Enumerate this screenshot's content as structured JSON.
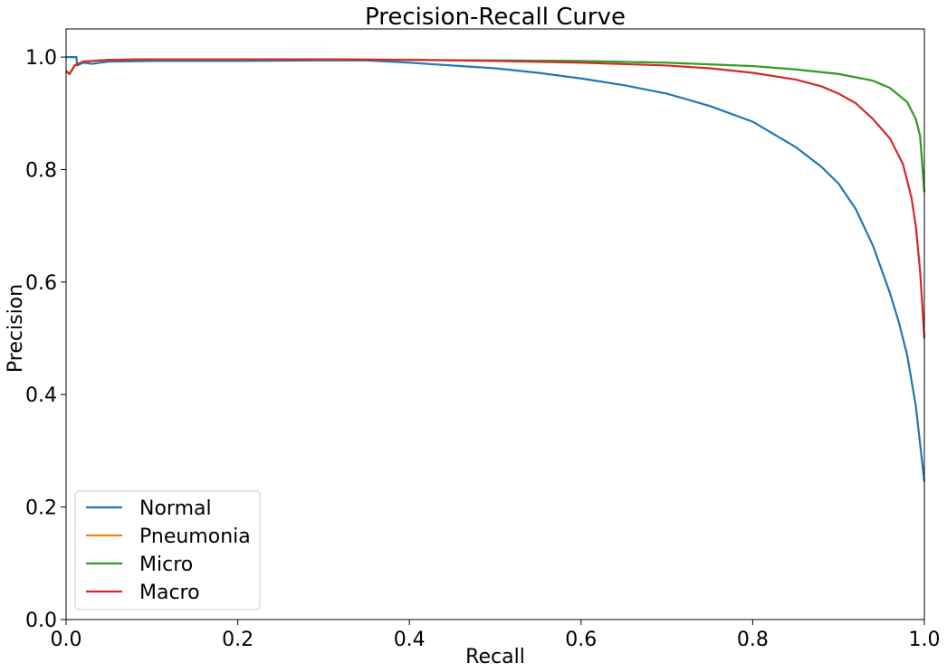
{
  "chart_data": {
    "type": "line",
    "title": "Precision-Recall Curve",
    "xlabel": "Recall",
    "ylabel": "Precision",
    "xlim": [
      0.0,
      1.0
    ],
    "ylim": [
      0.0,
      1.05
    ],
    "xticks": [
      "0.0",
      "0.2",
      "0.4",
      "0.6",
      "0.8",
      "1.0"
    ],
    "yticks": [
      "0.0",
      "0.2",
      "0.4",
      "0.6",
      "0.8",
      "1.0"
    ],
    "grid": false,
    "legend_position": "lower-left",
    "series": [
      {
        "name": "Normal",
        "color": "#1f77b4",
        "points": [
          [
            0.0,
            1.0
          ],
          [
            0.012,
            1.0
          ],
          [
            0.013,
            0.985
          ],
          [
            0.02,
            0.99
          ],
          [
            0.03,
            0.988
          ],
          [
            0.05,
            0.992
          ],
          [
            0.1,
            0.993
          ],
          [
            0.2,
            0.993
          ],
          [
            0.3,
            0.994
          ],
          [
            0.35,
            0.994
          ],
          [
            0.4,
            0.99
          ],
          [
            0.45,
            0.985
          ],
          [
            0.5,
            0.98
          ],
          [
            0.55,
            0.972
          ],
          [
            0.6,
            0.962
          ],
          [
            0.65,
            0.95
          ],
          [
            0.7,
            0.935
          ],
          [
            0.75,
            0.913
          ],
          [
            0.8,
            0.885
          ],
          [
            0.85,
            0.84
          ],
          [
            0.88,
            0.805
          ],
          [
            0.9,
            0.775
          ],
          [
            0.92,
            0.73
          ],
          [
            0.94,
            0.665
          ],
          [
            0.96,
            0.58
          ],
          [
            0.97,
            0.53
          ],
          [
            0.98,
            0.47
          ],
          [
            0.99,
            0.38
          ],
          [
            1.0,
            0.245
          ]
        ]
      },
      {
        "name": "Pneumonia",
        "color": "#ff7f0e",
        "points": [
          [
            0.0,
            0.975
          ],
          [
            0.004,
            0.97
          ],
          [
            0.01,
            0.985
          ],
          [
            0.02,
            0.992
          ],
          [
            0.05,
            0.995
          ],
          [
            0.1,
            0.996
          ],
          [
            0.2,
            0.996
          ],
          [
            0.3,
            0.996
          ],
          [
            0.4,
            0.995
          ],
          [
            0.5,
            0.994
          ],
          [
            0.6,
            0.993
          ],
          [
            0.7,
            0.99
          ],
          [
            0.8,
            0.984
          ],
          [
            0.85,
            0.978
          ],
          [
            0.9,
            0.97
          ],
          [
            0.94,
            0.958
          ],
          [
            0.96,
            0.945
          ],
          [
            0.98,
            0.92
          ],
          [
            0.99,
            0.89
          ],
          [
            0.995,
            0.86
          ],
          [
            1.0,
            0.76
          ]
        ]
      },
      {
        "name": "Micro",
        "color": "#2ca02c",
        "points": [
          [
            0.0,
            0.975
          ],
          [
            0.004,
            0.97
          ],
          [
            0.01,
            0.985
          ],
          [
            0.02,
            0.992
          ],
          [
            0.05,
            0.995
          ],
          [
            0.1,
            0.996
          ],
          [
            0.2,
            0.996
          ],
          [
            0.3,
            0.996
          ],
          [
            0.4,
            0.995
          ],
          [
            0.5,
            0.994
          ],
          [
            0.6,
            0.993
          ],
          [
            0.7,
            0.99
          ],
          [
            0.8,
            0.984
          ],
          [
            0.85,
            0.978
          ],
          [
            0.9,
            0.97
          ],
          [
            0.94,
            0.958
          ],
          [
            0.96,
            0.945
          ],
          [
            0.98,
            0.92
          ],
          [
            0.99,
            0.89
          ],
          [
            0.995,
            0.86
          ],
          [
            1.0,
            0.76
          ]
        ]
      },
      {
        "name": "Macro",
        "color": "#d62728",
        "points": [
          [
            0.0,
            0.975
          ],
          [
            0.004,
            0.97
          ],
          [
            0.01,
            0.985
          ],
          [
            0.02,
            0.992
          ],
          [
            0.05,
            0.995
          ],
          [
            0.1,
            0.996
          ],
          [
            0.2,
            0.996
          ],
          [
            0.3,
            0.996
          ],
          [
            0.4,
            0.995
          ],
          [
            0.5,
            0.993
          ],
          [
            0.6,
            0.99
          ],
          [
            0.7,
            0.985
          ],
          [
            0.75,
            0.98
          ],
          [
            0.8,
            0.972
          ],
          [
            0.85,
            0.96
          ],
          [
            0.88,
            0.948
          ],
          [
            0.9,
            0.935
          ],
          [
            0.92,
            0.918
          ],
          [
            0.94,
            0.89
          ],
          [
            0.96,
            0.855
          ],
          [
            0.975,
            0.81
          ],
          [
            0.985,
            0.75
          ],
          [
            0.99,
            0.7
          ],
          [
            0.995,
            0.62
          ],
          [
            1.0,
            0.5
          ]
        ]
      }
    ]
  }
}
